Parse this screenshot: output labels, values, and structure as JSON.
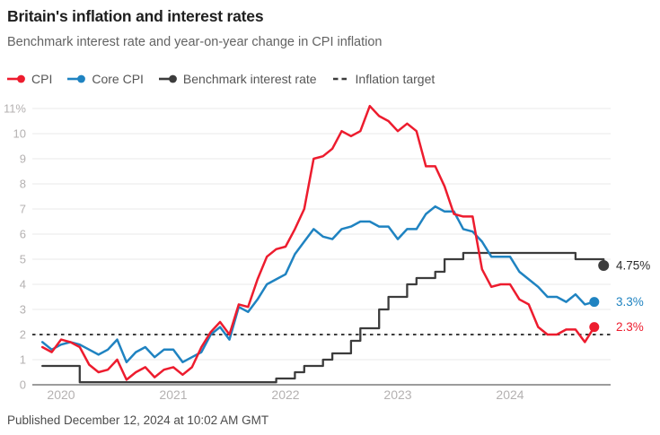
{
  "header": {
    "title": "Britain's inflation and interest rates",
    "subtitle": "Benchmark interest rate and year-on-year change in CPI inflation"
  },
  "legend": {
    "items": [
      {
        "label": "CPI",
        "color": "#ed1c2e",
        "marker": "line-dot"
      },
      {
        "label": "Core CPI",
        "color": "#1f83c1",
        "marker": "line-dot"
      },
      {
        "label": "Benchmark interest rate",
        "color": "#3c3c3c",
        "marker": "line-dot"
      },
      {
        "label": "Inflation target",
        "color": "#3c3c3c",
        "marker": "dashes"
      }
    ]
  },
  "footer": {
    "published": "Published December 12, 2024 at 10:02 AM GMT"
  },
  "chart_data": {
    "type": "line",
    "title": "Britain's inflation and interest rates",
    "subtitle": "Benchmark interest rate and year-on-year change in CPI inflation",
    "frequency": "monthly",
    "x_start": "Nov 2019",
    "x_tick_years": [
      "2020",
      "2021",
      "2022",
      "2023",
      "2024"
    ],
    "ylim": [
      0,
      11
    ],
    "y_top_label": "11%",
    "grid": true,
    "colors": {
      "grid": "#e8e8e8",
      "zero_axis": "#9c9c9c",
      "tick_label": "#b4b1b1",
      "target_line": "#3e3e3e",
      "benchmark_label_text": "#2d2d2d"
    },
    "target": {
      "name": "Inflation target",
      "value": 2
    },
    "series": [
      {
        "name": "Benchmark interest rate",
        "style": "step",
        "color": "#3c3c3c",
        "end_label": "4.75%",
        "end_value": 4.75,
        "values": [
          0.75,
          0.75,
          0.75,
          0.75,
          0.1,
          0.1,
          0.1,
          0.1,
          0.1,
          0.1,
          0.1,
          0.1,
          0.1,
          0.1,
          0.1,
          0.1,
          0.1,
          0.1,
          0.1,
          0.1,
          0.1,
          0.1,
          0.1,
          0.1,
          0.1,
          0.25,
          0.25,
          0.5,
          0.75,
          0.75,
          1.0,
          1.25,
          1.25,
          1.75,
          2.25,
          2.25,
          3.0,
          3.5,
          3.5,
          4.0,
          4.25,
          4.25,
          4.5,
          5.0,
          5.0,
          5.25,
          5.25,
          5.25,
          5.25,
          5.25,
          5.25,
          5.25,
          5.25,
          5.25,
          5.25,
          5.25,
          5.25,
          5.0,
          5.0,
          5.0,
          4.75
        ]
      },
      {
        "name": "Core CPI",
        "style": "line",
        "color": "#1f83c1",
        "end_label": "3.3%",
        "end_value": 3.3,
        "values": [
          1.7,
          1.4,
          1.6,
          1.7,
          1.6,
          1.4,
          1.2,
          1.4,
          1.8,
          0.9,
          1.3,
          1.5,
          1.1,
          1.4,
          1.4,
          0.9,
          1.1,
          1.3,
          2.0,
          2.3,
          1.8,
          3.1,
          2.9,
          3.4,
          4.0,
          4.2,
          4.4,
          5.2,
          5.7,
          6.2,
          5.9,
          5.8,
          6.2,
          6.3,
          6.5,
          6.5,
          6.3,
          6.3,
          5.8,
          6.2,
          6.2,
          6.8,
          7.1,
          6.9,
          6.9,
          6.2,
          6.1,
          5.7,
          5.1,
          5.1,
          5.1,
          4.5,
          4.2,
          3.9,
          3.5,
          3.5,
          3.3,
          3.6,
          3.2,
          3.3
        ]
      },
      {
        "name": "CPI",
        "style": "line",
        "color": "#ed1c2e",
        "end_label": "2.3%",
        "end_value": 2.3,
        "values": [
          1.5,
          1.3,
          1.8,
          1.7,
          1.5,
          0.8,
          0.5,
          0.6,
          1.0,
          0.2,
          0.5,
          0.7,
          0.3,
          0.6,
          0.7,
          0.4,
          0.7,
          1.5,
          2.1,
          2.5,
          2.0,
          3.2,
          3.1,
          4.2,
          5.1,
          5.4,
          5.5,
          6.2,
          7.0,
          9.0,
          9.1,
          9.4,
          10.1,
          9.9,
          10.1,
          11.1,
          10.7,
          10.5,
          10.1,
          10.4,
          10.1,
          8.7,
          8.7,
          7.9,
          6.8,
          6.7,
          6.7,
          4.6,
          3.9,
          4.0,
          4.0,
          3.4,
          3.2,
          2.3,
          2.0,
          2.0,
          2.2,
          2.2,
          1.7,
          2.3
        ]
      }
    ]
  }
}
